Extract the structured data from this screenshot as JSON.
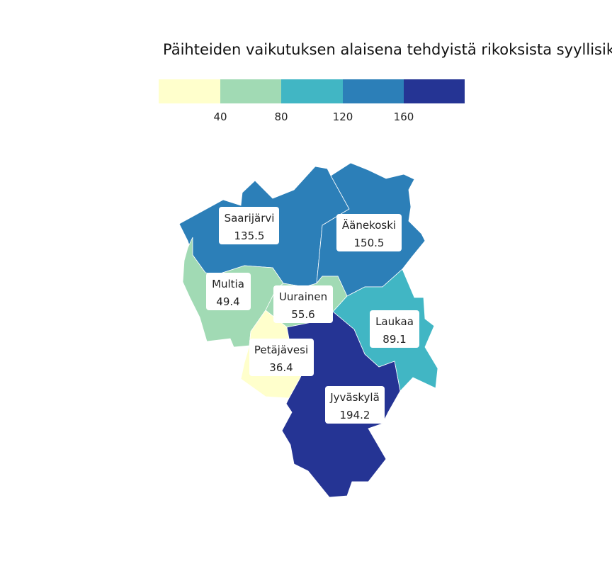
{
  "title": "Päihteiden vaikutuksen alaisena tehdyistä rikoksista syyllisiks",
  "legend": {
    "colors": [
      "#ffffcc",
      "#a1dab4",
      "#41b6c4",
      "#2c7fb8",
      "#253494"
    ],
    "ticks": [
      "40",
      "80",
      "120",
      "160"
    ]
  },
  "chart_data": {
    "type": "choropleth",
    "title": "Päihteiden vaikutuksen alaisena tehdyistä rikoksista syyllisiks",
    "bins": [
      0,
      40,
      80,
      120,
      160,
      200
    ],
    "regions": [
      {
        "name": "Saarijärvi",
        "value": 135.5,
        "value_label": "135.5",
        "color": "#2c7fb8"
      },
      {
        "name": "Äänekoski",
        "value": 150.5,
        "value_label": "150.5",
        "color": "#2c7fb8"
      },
      {
        "name": "Multia",
        "value": 49.4,
        "value_label": "49.4",
        "color": "#a1dab4"
      },
      {
        "name": "Uurainen",
        "value": 55.6,
        "value_label": "55.6",
        "color": "#a1dab4"
      },
      {
        "name": "Laukaa",
        "value": 89.1,
        "value_label": "89.1",
        "color": "#41b6c4"
      },
      {
        "name": "Petäjävesi",
        "value": 36.4,
        "value_label": "36.4",
        "color": "#ffffcc"
      },
      {
        "name": "Jyväskylä",
        "value": 194.2,
        "value_label": "194.2",
        "color": "#253494"
      }
    ]
  }
}
